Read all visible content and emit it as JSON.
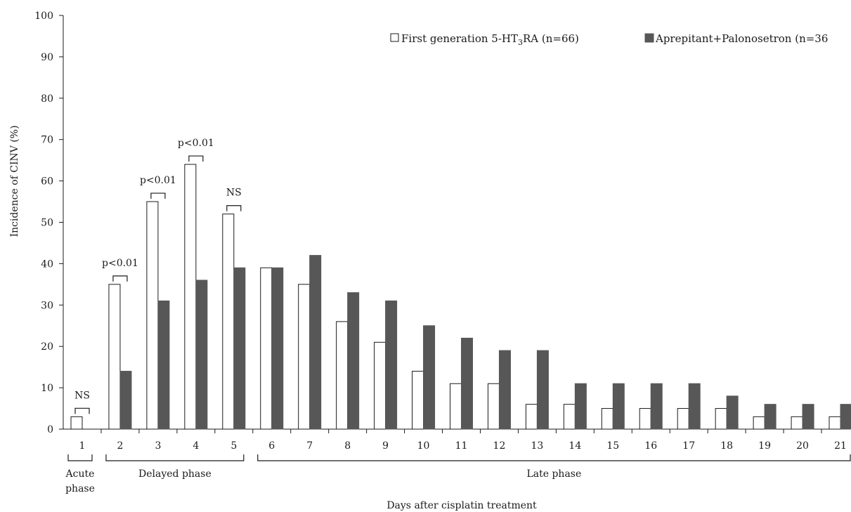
{
  "chart_data": {
    "type": "bar",
    "categories": [
      "1",
      "2",
      "3",
      "4",
      "5",
      "6",
      "7",
      "8",
      "9",
      "10",
      "11",
      "12",
      "13",
      "14",
      "15",
      "16",
      "17",
      "18",
      "19",
      "20",
      "21"
    ],
    "series": [
      {
        "name": "First generation 5-HT3RA (n=66)",
        "color": "#ffffff",
        "stroke": "#1a1a1a",
        "values": [
          3,
          35,
          55,
          64,
          52,
          39,
          35,
          26,
          21,
          14,
          11,
          11,
          6,
          6,
          5,
          5,
          5,
          5,
          3,
          3,
          3
        ]
      },
      {
        "name": "Aprepitant+Palonosetron (n=36",
        "color": "#575757",
        "stroke": "#575757",
        "values": [
          0,
          14,
          31,
          36,
          39,
          39,
          42,
          33,
          31,
          25,
          22,
          19,
          19,
          11,
          11,
          11,
          11,
          8,
          6,
          6,
          6
        ]
      }
    ],
    "legend": {
      "entry1_prefix": "First generation 5-HT",
      "entry1_sub": "3",
      "entry1_suffix": "RA (n=66)",
      "entry2": "Aprepitant+Palonosetron (n=36",
      "placement": "top-right"
    },
    "xlabel": "Days after cisplatin treatment",
    "ylabel": "Incidence of CINV (%)",
    "ylim": [
      0,
      100
    ],
    "yticks": [
      "0",
      "10",
      "20",
      "30",
      "40",
      "50",
      "60",
      "70",
      "80",
      "90",
      "100"
    ],
    "grid": false,
    "annotations": [
      {
        "day": 1,
        "text": "NS",
        "value": 3
      },
      {
        "day": 2,
        "text": "p<0.01",
        "value": 35
      },
      {
        "day": 3,
        "text": "p<0.01",
        "value": 55
      },
      {
        "day": 4,
        "text": "p<0.01",
        "value": 64
      },
      {
        "day": 5,
        "text": "NS",
        "value": 52
      }
    ],
    "phases": [
      {
        "label_lines": [
          "Acute",
          "phase"
        ],
        "from": 1,
        "to": 1
      },
      {
        "label_lines": [
          "Delayed phase"
        ],
        "from": 2,
        "to": 5
      },
      {
        "label_lines": [
          "Late phase"
        ],
        "from": 6,
        "to": 21
      }
    ]
  }
}
